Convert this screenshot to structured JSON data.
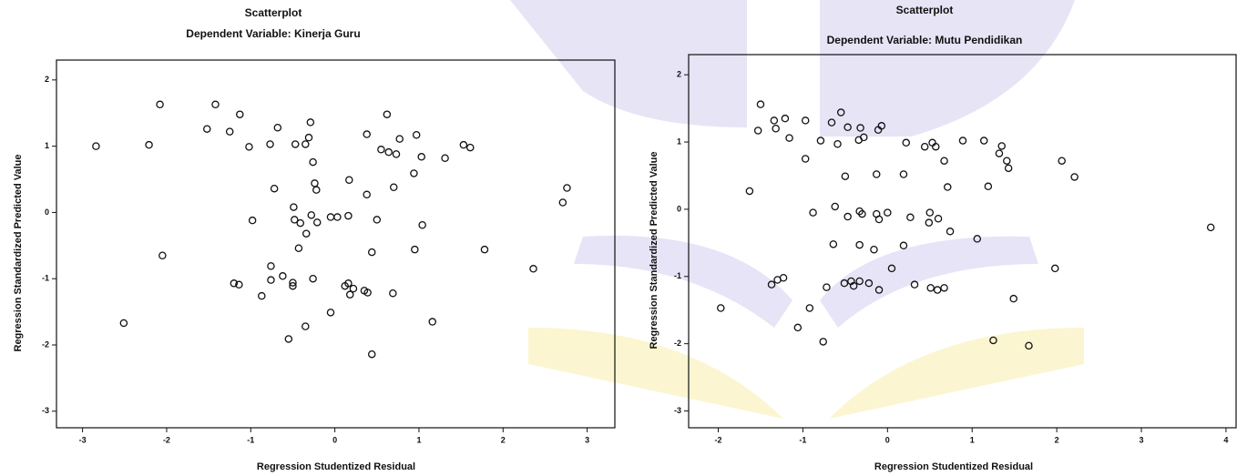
{
  "chart_data": [
    {
      "type": "scatter",
      "title": "Scatterplot",
      "subtitle": "Dependent Variable: Kinerja Guru",
      "x_label": "Regression Studentized Residual",
      "y_label": "Regression Standardized Predicted Value",
      "xlim": [
        -3.31,
        3.34
      ],
      "ylim": [
        -3.25,
        2.3
      ],
      "xticks": [
        -3,
        -2,
        -1,
        0,
        1,
        2,
        3
      ],
      "yticks": [
        -3,
        -2,
        -1,
        0,
        1,
        2
      ],
      "color": "#111111",
      "series": [
        {
          "x": [
            -2.84,
            -2.21,
            -2.08,
            -2.05,
            -2.51,
            -1.42,
            -1.52,
            -1.25,
            -1.13,
            -1.02,
            -0.98,
            -0.77,
            -0.68,
            -0.72,
            -0.76,
            -0.76,
            -0.62,
            -0.87,
            -1.2,
            -1.14,
            -0.5,
            -0.5,
            -0.55,
            -0.35,
            -0.47,
            -0.35,
            -0.31,
            -0.29,
            -0.26,
            -0.24,
            -0.22,
            -0.48,
            -0.41,
            -0.49,
            -0.43,
            -0.34,
            -0.28,
            -0.21,
            -0.26,
            -0.05,
            0.03,
            0.16,
            0.17,
            0.38,
            -0.05,
            0.12,
            0.16,
            0.22,
            0.18,
            0.35,
            0.39,
            0.44,
            0.5,
            0.44,
            0.38,
            0.55,
            0.64,
            0.73,
            0.62,
            0.7,
            0.77,
            0.97,
            1.03,
            0.94,
            0.95,
            1.04,
            0.69,
            1.16,
            1.31,
            1.53,
            1.61,
            1.78,
            2.36,
            2.71,
            2.76
          ],
          "values": [
            1.0,
            1.02,
            1.63,
            -0.65,
            -1.67,
            1.63,
            1.26,
            1.22,
            1.48,
            0.99,
            -0.12,
            1.03,
            1.28,
            0.36,
            -0.81,
            -1.02,
            -0.96,
            -1.26,
            -1.07,
            -1.09,
            -1.06,
            -1.11,
            -1.91,
            -1.72,
            1.03,
            1.03,
            1.13,
            1.36,
            0.76,
            0.44,
            0.34,
            -0.11,
            -0.16,
            0.08,
            -0.54,
            -0.32,
            -0.04,
            -0.15,
            -1.0,
            -0.07,
            -0.07,
            -0.05,
            0.49,
            0.27,
            -1.51,
            -1.11,
            -1.07,
            -1.15,
            -1.24,
            -1.18,
            -1.21,
            -0.6,
            -0.11,
            -2.14,
            1.18,
            0.95,
            0.91,
            0.88,
            1.48,
            0.38,
            1.11,
            1.17,
            0.84,
            0.59,
            -0.56,
            -0.19,
            -1.22,
            -1.65,
            0.82,
            1.02,
            0.98,
            -0.56,
            -0.85,
            0.15,
            0.37
          ]
        }
      ]
    },
    {
      "type": "scatter",
      "title": "Scatterplot",
      "subtitle": "Dependent Variable: Mutu Pendidikan",
      "x_label": "Regression Studentized Residual",
      "y_label": "Regression Standardized Predicted Value",
      "xlim": [
        -2.35,
        4.13
      ],
      "ylim": [
        -3.25,
        2.3
      ],
      "xticks": [
        -2,
        -1,
        0,
        1,
        2,
        3,
        4
      ],
      "yticks": [
        -3,
        -2,
        -1,
        0,
        1,
        2
      ],
      "color": "#111111",
      "series": [
        {
          "x": [
            -1.97,
            -1.63,
            -1.53,
            -1.5,
            -1.34,
            -1.32,
            -1.21,
            -1.16,
            -0.97,
            -0.97,
            -1.37,
            -1.3,
            -1.23,
            -1.06,
            -0.92,
            -0.88,
            -0.79,
            -0.72,
            -0.76,
            -0.66,
            -0.59,
            -0.55,
            -0.62,
            -0.64,
            -0.5,
            -0.47,
            -0.47,
            -0.34,
            -0.32,
            -0.28,
            -0.33,
            -0.3,
            -0.33,
            -0.16,
            -0.13,
            -0.11,
            -0.07,
            -0.13,
            -0.1,
            0.0,
            -0.1,
            0.05,
            0.19,
            0.19,
            0.22,
            0.27,
            0.32,
            0.44,
            0.49,
            0.5,
            0.53,
            0.57,
            0.6,
            0.51,
            0.59,
            0.67,
            0.67,
            0.71,
            0.74,
            0.89,
            1.06,
            1.14,
            1.19,
            1.32,
            1.35,
            1.41,
            1.43,
            1.49,
            1.25,
            1.67,
            1.98,
            2.06,
            2.21,
            3.82,
            -0.51,
            -0.43,
            -0.33,
            -0.22,
            -0.4
          ],
          "values": [
            -1.47,
            0.27,
            1.17,
            1.56,
            1.32,
            1.2,
            1.35,
            1.06,
            1.32,
            0.75,
            -1.12,
            -1.05,
            -1.02,
            -1.76,
            -1.47,
            -0.05,
            1.02,
            -1.16,
            -1.97,
            1.29,
            0.97,
            1.44,
            0.04,
            -0.52,
            0.49,
            -0.11,
            1.22,
            1.03,
            1.21,
            1.07,
            -0.03,
            -0.07,
            -0.53,
            -0.6,
            0.52,
            1.18,
            1.24,
            -0.07,
            -0.15,
            -0.05,
            -1.2,
            -0.88,
            0.52,
            -0.54,
            0.99,
            -0.12,
            -1.12,
            0.93,
            -0.2,
            -0.05,
            0.99,
            0.93,
            -0.14,
            -1.17,
            -1.2,
            -1.17,
            0.72,
            0.33,
            -0.33,
            1.02,
            -0.44,
            1.02,
            0.34,
            0.83,
            0.94,
            0.72,
            0.61,
            -1.33,
            -1.95,
            -2.03,
            -0.88,
            0.72,
            0.48,
            -0.27,
            -1.1,
            -1.07,
            -1.07,
            -1.1,
            -1.14
          ]
        }
      ]
    }
  ]
}
